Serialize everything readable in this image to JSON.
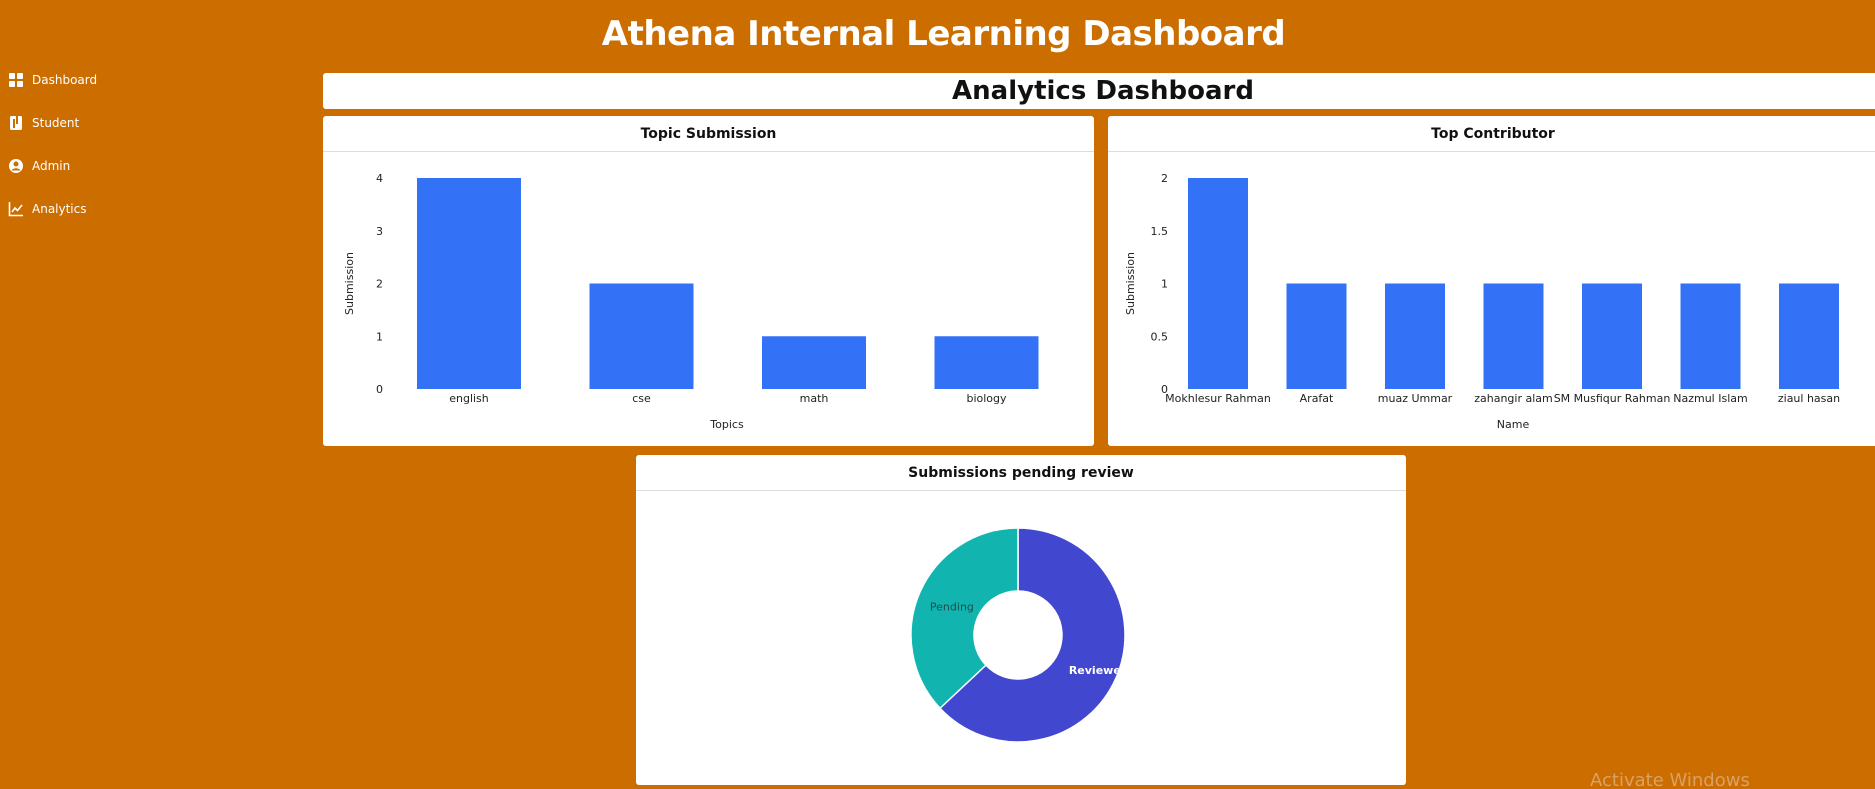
{
  "app": {
    "title": "Athena Internal Learning Dashboard"
  },
  "sidebar": {
    "items": [
      {
        "label": "Dashboard",
        "icon": "dashboard-grid-icon"
      },
      {
        "label": "Student",
        "icon": "book-icon"
      },
      {
        "label": "Admin",
        "icon": "user-circle-icon"
      },
      {
        "label": "Analytics",
        "icon": "line-chart-icon"
      }
    ]
  },
  "page": {
    "title": "Analytics Dashboard"
  },
  "colors": {
    "background": "#CC6D00",
    "bar": "#3371F7",
    "reviewed": "#4147CE",
    "pending": "#12B4B0"
  },
  "charts": {
    "topic": {
      "title": "Topic Submission"
    },
    "contrib": {
      "title": "Top Contributor"
    },
    "pending": {
      "title": "Submissions pending review"
    }
  },
  "chart_data": [
    {
      "type": "bar",
      "title": "Topic Submission",
      "categories": [
        "english",
        "cse",
        "math",
        "biology"
      ],
      "values": [
        4,
        2,
        1,
        1
      ],
      "xlabel": "Topics",
      "ylabel": "Submission",
      "ylim": [
        0,
        4
      ],
      "yticks": [
        "0",
        "1",
        "2",
        "3",
        "4"
      ],
      "grid": false
    },
    {
      "type": "bar",
      "title": "Top Contributor",
      "categories": [
        "Mokhlesur Rahman",
        "Arafat",
        "muaz Ummar",
        "zahangir alam",
        "SM Musfiqur Rahman",
        "Nazmul Islam",
        "ziaul hasan"
      ],
      "values": [
        2,
        1,
        1,
        1,
        1,
        1,
        1
      ],
      "xlabel": "Name",
      "ylabel": "Submission",
      "ylim": [
        0,
        2
      ],
      "yticks": [
        "0",
        "0.5",
        "1",
        "1.5",
        "2"
      ],
      "grid": false
    },
    {
      "type": "pie",
      "title": "Submissions pending review",
      "categories": [
        "Reviewed",
        "Pending"
      ],
      "values": [
        63,
        37
      ],
      "donut": true
    }
  ],
  "watermark": "Activate Windows"
}
